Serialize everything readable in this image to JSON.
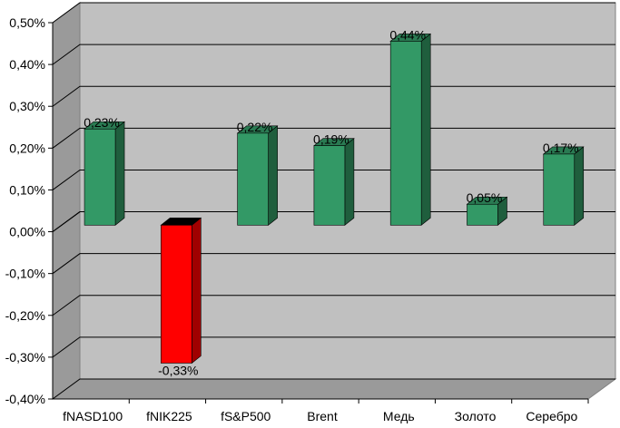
{
  "chart_data": {
    "type": "bar",
    "categories": [
      "fNASD100",
      "fNIK225",
      "fS&P500",
      "Brent",
      "Медь",
      "Золото",
      "Серебро"
    ],
    "values": [
      0.23,
      -0.33,
      0.22,
      0.19,
      0.44,
      0.05,
      0.17
    ],
    "data_labels": [
      "0,23%",
      "-0,33%",
      "0,22%",
      "0,19%",
      "0,44%",
      "0,05%",
      "0,17%"
    ],
    "y_ticks": [
      0.5,
      0.4,
      0.3,
      0.2,
      0.1,
      0.0,
      -0.1,
      -0.2,
      -0.3,
      -0.4
    ],
    "y_tick_labels": [
      "0,50%",
      "0,40%",
      "0,30%",
      "0,20%",
      "0,10%",
      "0,00%",
      "-0,10%",
      "-0,20%",
      "-0,30%",
      "-0,40%"
    ],
    "ylim": [
      -0.4,
      0.5
    ],
    "title": "",
    "xlabel": "",
    "ylabel": "",
    "grid": true,
    "legend": "none",
    "colors": {
      "positive": "#339966",
      "negative": "#ff0000",
      "wall": "#c0c0c0",
      "gridline": "#000000"
    }
  }
}
